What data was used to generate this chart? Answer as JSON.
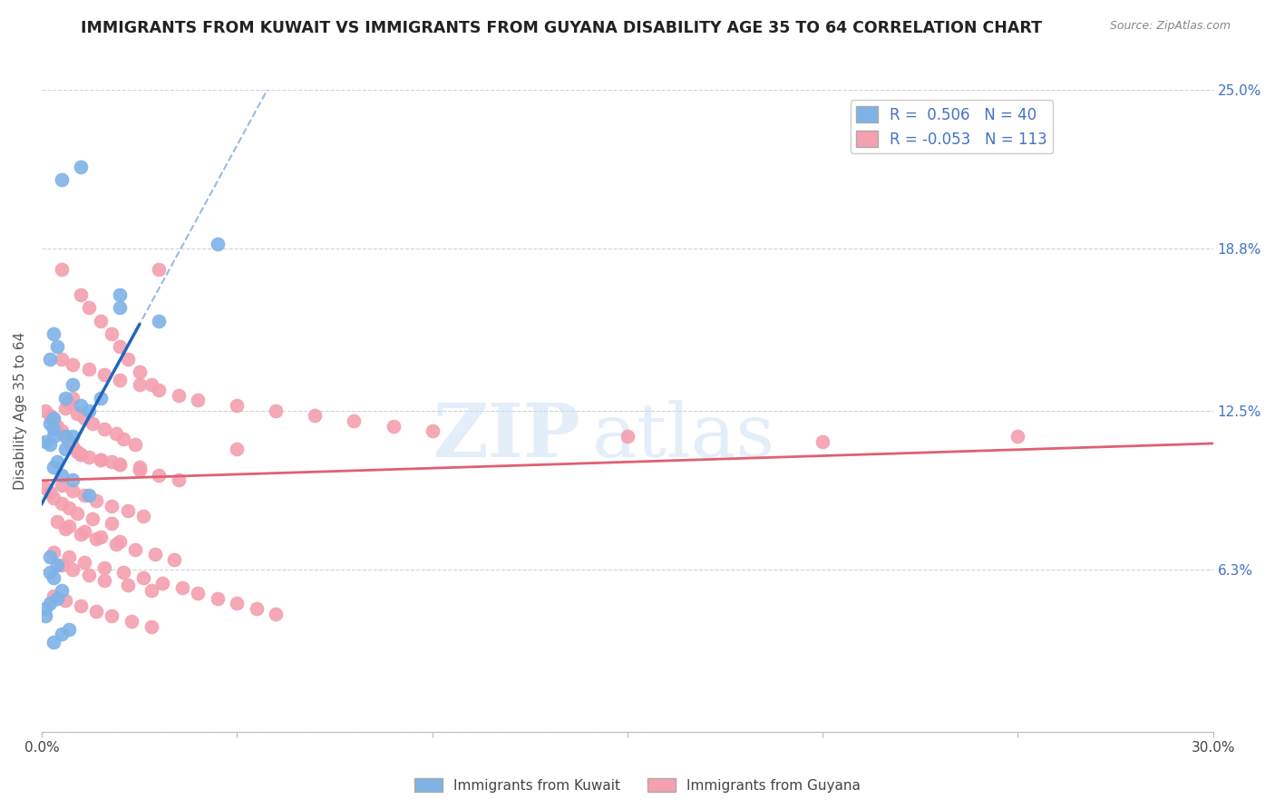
{
  "title": "IMMIGRANTS FROM KUWAIT VS IMMIGRANTS FROM GUYANA DISABILITY AGE 35 TO 64 CORRELATION CHART",
  "source": "Source: ZipAtlas.com",
  "ylabel": "Disability Age 35 to 64",
  "xlim": [
    0.0,
    0.3
  ],
  "ylim": [
    0.0,
    0.25
  ],
  "xticks": [
    0.0,
    0.05,
    0.1,
    0.15,
    0.2,
    0.25,
    0.3
  ],
  "xticklabels": [
    "0.0%",
    "",
    "",
    "",
    "",
    "",
    "30.0%"
  ],
  "ytick_positions": [
    0.0,
    0.063,
    0.125,
    0.188,
    0.25
  ],
  "ytick_labels_right": [
    "",
    "6.3%",
    "12.5%",
    "18.8%",
    "25.0%"
  ],
  "kuwait_color": "#7EB3E8",
  "guyana_color": "#F4A0B0",
  "kuwait_line_color": "#2266BB",
  "guyana_line_color": "#E06070",
  "kuwait_R": 0.506,
  "kuwait_N": 40,
  "guyana_R": -0.053,
  "guyana_N": 113,
  "legend_label_kuwait": "Immigrants from Kuwait",
  "legend_label_guyana": "Immigrants from Guyana",
  "background_color": "#ffffff",
  "kuwait_points_x": [
    0.005,
    0.003,
    0.004,
    0.002,
    0.003,
    0.001,
    0.002,
    0.006,
    0.004,
    0.003,
    0.005,
    0.008,
    0.012,
    0.003,
    0.002,
    0.003,
    0.006,
    0.008,
    0.002,
    0.001,
    0.001,
    0.007,
    0.005,
    0.003,
    0.002,
    0.004,
    0.002,
    0.003,
    0.005,
    0.004,
    0.006,
    0.008,
    0.01,
    0.01,
    0.012,
    0.015,
    0.02,
    0.02,
    0.045,
    0.03
  ],
  "kuwait_points_y": [
    0.215,
    0.155,
    0.15,
    0.145,
    0.115,
    0.113,
    0.112,
    0.11,
    0.105,
    0.103,
    0.1,
    0.098,
    0.092,
    0.122,
    0.12,
    0.118,
    0.115,
    0.115,
    0.05,
    0.048,
    0.045,
    0.04,
    0.038,
    0.035,
    0.068,
    0.065,
    0.062,
    0.06,
    0.055,
    0.052,
    0.13,
    0.135,
    0.22,
    0.127,
    0.125,
    0.13,
    0.165,
    0.17,
    0.19,
    0.16
  ],
  "guyana_points_x": [
    0.005,
    0.01,
    0.012,
    0.015,
    0.018,
    0.02,
    0.022,
    0.025,
    0.028,
    0.03,
    0.008,
    0.007,
    0.006,
    0.009,
    0.011,
    0.013,
    0.016,
    0.019,
    0.021,
    0.024,
    0.001,
    0.002,
    0.003,
    0.004,
    0.005,
    0.006,
    0.007,
    0.008,
    0.009,
    0.01,
    0.012,
    0.015,
    0.018,
    0.02,
    0.025,
    0.005,
    0.008,
    0.012,
    0.016,
    0.02,
    0.025,
    0.03,
    0.035,
    0.04,
    0.05,
    0.06,
    0.07,
    0.08,
    0.09,
    0.1,
    0.15,
    0.2,
    0.25,
    0.05,
    0.01,
    0.015,
    0.02,
    0.025,
    0.03,
    0.035,
    0.005,
    0.008,
    0.011,
    0.014,
    0.018,
    0.022,
    0.026,
    0.004,
    0.007,
    0.011,
    0.015,
    0.02,
    0.001,
    0.002,
    0.003,
    0.005,
    0.007,
    0.009,
    0.013,
    0.018,
    0.006,
    0.01,
    0.014,
    0.019,
    0.024,
    0.029,
    0.034,
    0.005,
    0.008,
    0.012,
    0.016,
    0.022,
    0.028,
    0.003,
    0.006,
    0.01,
    0.014,
    0.018,
    0.023,
    0.028,
    0.003,
    0.007,
    0.011,
    0.016,
    0.021,
    0.026,
    0.031,
    0.036,
    0.04,
    0.045,
    0.05,
    0.055,
    0.06
  ],
  "guyana_points_y": [
    0.18,
    0.17,
    0.165,
    0.16,
    0.155,
    0.15,
    0.145,
    0.14,
    0.135,
    0.18,
    0.13,
    0.128,
    0.126,
    0.124,
    0.122,
    0.12,
    0.118,
    0.116,
    0.114,
    0.112,
    0.125,
    0.123,
    0.121,
    0.119,
    0.117,
    0.115,
    0.113,
    0.111,
    0.109,
    0.108,
    0.107,
    0.106,
    0.105,
    0.104,
    0.103,
    0.145,
    0.143,
    0.141,
    0.139,
    0.137,
    0.135,
    0.133,
    0.131,
    0.129,
    0.127,
    0.125,
    0.123,
    0.121,
    0.119,
    0.117,
    0.115,
    0.113,
    0.115,
    0.11,
    0.108,
    0.106,
    0.104,
    0.102,
    0.1,
    0.098,
    0.096,
    0.094,
    0.092,
    0.09,
    0.088,
    0.086,
    0.084,
    0.082,
    0.08,
    0.078,
    0.076,
    0.074,
    0.095,
    0.093,
    0.091,
    0.089,
    0.087,
    0.085,
    0.083,
    0.081,
    0.079,
    0.077,
    0.075,
    0.073,
    0.071,
    0.069,
    0.067,
    0.065,
    0.063,
    0.061,
    0.059,
    0.057,
    0.055,
    0.053,
    0.051,
    0.049,
    0.047,
    0.045,
    0.043,
    0.041,
    0.07,
    0.068,
    0.066,
    0.064,
    0.062,
    0.06,
    0.058,
    0.056,
    0.054,
    0.052,
    0.05,
    0.048,
    0.046
  ]
}
